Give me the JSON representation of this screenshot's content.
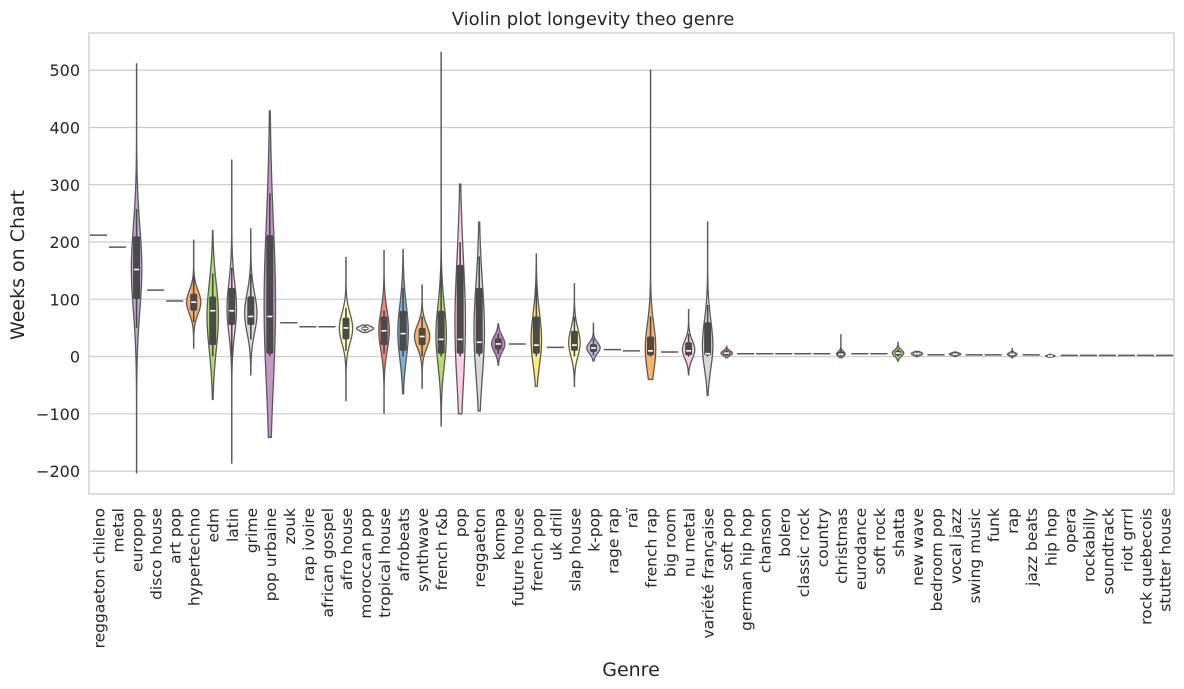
{
  "chart_data": {
    "type": "violin",
    "title": "Violin plot longevity theo genre",
    "xlabel": "Genre",
    "ylabel": "Weeks on Chart",
    "ylim": [
      -240,
      565
    ],
    "yticks": [
      -200,
      -100,
      0,
      100,
      200,
      300,
      400,
      500
    ],
    "grid": "horizontal",
    "categories": [
      "reggaeton chileno",
      "metal",
      "europop",
      "disco house",
      "art pop",
      "hypertechno",
      "edm",
      "latin",
      "grime",
      "pop urbaine",
      "zouk",
      "rap ivoire",
      "african gospel",
      "afro house",
      "moroccan pop",
      "tropical house",
      "afrobeats",
      "synthwave",
      "french r&b",
      "pop",
      "reggaeton",
      "kompa",
      "future house",
      "french pop",
      "uk drill",
      "slap house",
      "k-pop",
      "rage rap",
      "raï",
      "french rap",
      "big room",
      "nu metal",
      "variété française",
      "soft pop",
      "german hip hop",
      "chanson",
      "bolero",
      "classic rock",
      "country",
      "christmas",
      "eurodance",
      "soft rock",
      "shatta",
      "new wave",
      "bedroom pop",
      "vocal jazz",
      "swing music",
      "funk",
      "rap",
      "jazz beats",
      "hip hop",
      "opera",
      "rockabilly",
      "soundtrack",
      "riot grrrl",
      "rock quebecois",
      "stutter house"
    ],
    "series": [
      {
        "genre": "reggaeton chileno",
        "color": "#7fc97f",
        "min": 212,
        "max": 212,
        "q1": 212,
        "median": 212,
        "q3": 212,
        "wmin": 212,
        "wmax": 212,
        "width": 0.0
      },
      {
        "genre": "metal",
        "color": "#beaed4",
        "min": 191,
        "max": 191,
        "q1": 191,
        "median": 191,
        "q3": 191,
        "wmin": 191,
        "wmax": 191,
        "width": 0.0
      },
      {
        "genre": "europop",
        "color": "#beaed4",
        "min": -203,
        "max": 511,
        "q1": 100,
        "median": 152,
        "q3": 210,
        "wmin": 50,
        "wmax": 258,
        "width": 0.55
      },
      {
        "genre": "disco house",
        "color": "#fdc086",
        "min": 116,
        "max": 116,
        "q1": 116,
        "median": 116,
        "q3": 116,
        "wmin": 116,
        "wmax": 116,
        "width": 0.0
      },
      {
        "genre": "art pop",
        "color": "#ffff99",
        "min": 97,
        "max": 97,
        "q1": 97,
        "median": 97,
        "q3": 97,
        "wmin": 97,
        "wmax": 97,
        "width": 0.0
      },
      {
        "genre": "hypertechno",
        "color": "#fdae61",
        "min": 15,
        "max": 203,
        "q1": 80,
        "median": 95,
        "q3": 110,
        "wmin": 60,
        "wmax": 140,
        "width": 0.75
      },
      {
        "genre": "edm",
        "color": "#b3de69",
        "min": -75,
        "max": 220,
        "q1": 20,
        "median": 80,
        "q3": 105,
        "wmin": 0,
        "wmax": 145,
        "width": 0.6
      },
      {
        "genre": "latin",
        "color": "#fccde5",
        "min": -186,
        "max": 343,
        "q1": 55,
        "median": 80,
        "q3": 120,
        "wmin": 0,
        "wmax": 155,
        "width": 0.5
      },
      {
        "genre": "grime",
        "color": "#d9d9d9",
        "min": -32,
        "max": 223,
        "q1": 55,
        "median": 70,
        "q3": 105,
        "wmin": 30,
        "wmax": 145,
        "width": 0.65
      },
      {
        "genre": "pop urbaine",
        "color": "#c994c7",
        "min": -141,
        "max": 429,
        "q1": 5,
        "median": 70,
        "q3": 212,
        "wmin": 0,
        "wmax": 285,
        "width": 0.6
      },
      {
        "genre": "zouk",
        "color": "#66c2a5",
        "min": 59,
        "max": 59,
        "q1": 59,
        "median": 59,
        "q3": 59,
        "wmin": 59,
        "wmax": 59,
        "width": 0.0
      },
      {
        "genre": "rap ivoire",
        "color": "#8da0cb",
        "min": 52,
        "max": 52,
        "q1": 52,
        "median": 52,
        "q3": 52,
        "wmin": 52,
        "wmax": 52,
        "width": 0.0
      },
      {
        "genre": "african gospel",
        "color": "#e78ac3",
        "min": 52,
        "max": 52,
        "q1": 52,
        "median": 52,
        "q3": 52,
        "wmin": 52,
        "wmax": 52,
        "width": 0.0
      },
      {
        "genre": "afro house",
        "color": "#ffffb3",
        "min": -77,
        "max": 173,
        "q1": 30,
        "median": 50,
        "q3": 68,
        "wmin": 10,
        "wmax": 85,
        "width": 0.7
      },
      {
        "genre": "moroccan pop",
        "color": "#e5e5e5",
        "min": 42,
        "max": 55,
        "q1": 46,
        "median": 49,
        "q3": 52,
        "wmin": 44,
        "wmax": 54,
        "width": 0.9
      },
      {
        "genre": "tropical house",
        "color": "#fb8072",
        "min": -99,
        "max": 185,
        "q1": 20,
        "median": 45,
        "q3": 70,
        "wmin": 5,
        "wmax": 80,
        "width": 0.55
      },
      {
        "genre": "afrobeats",
        "color": "#80b1d3",
        "min": -65,
        "max": 187,
        "q1": 10,
        "median": 40,
        "q3": 80,
        "wmin": 0,
        "wmax": 120,
        "width": 0.55
      },
      {
        "genre": "synthwave",
        "color": "#fdb462",
        "min": -55,
        "max": 125,
        "q1": 20,
        "median": 35,
        "q3": 50,
        "wmin": 0,
        "wmax": 70,
        "width": 0.8
      },
      {
        "genre": "french r&b",
        "color": "#b3de69",
        "min": -121,
        "max": 531,
        "q1": 5,
        "median": 30,
        "q3": 80,
        "wmin": 0,
        "wmax": 150,
        "width": 0.55
      },
      {
        "genre": "pop",
        "color": "#fccde5",
        "min": -100,
        "max": 301,
        "q1": 5,
        "median": 30,
        "q3": 160,
        "wmin": 0,
        "wmax": 200,
        "width": 0.55
      },
      {
        "genre": "reggaeton",
        "color": "#d9d9d9",
        "min": -95,
        "max": 235,
        "q1": 5,
        "median": 25,
        "q3": 120,
        "wmin": 0,
        "wmax": 175,
        "width": 0.55
      },
      {
        "genre": "kompa",
        "color": "#bc80bd",
        "min": -15,
        "max": 57,
        "q1": 12,
        "median": 22,
        "q3": 32,
        "wmin": 5,
        "wmax": 40,
        "width": 0.7
      },
      {
        "genre": "future house",
        "color": "#ccebc5",
        "min": 22,
        "max": 22,
        "q1": 22,
        "median": 22,
        "q3": 22,
        "wmin": 22,
        "wmax": 22,
        "width": 0.0
      },
      {
        "genre": "french pop",
        "color": "#ffed6f",
        "min": -52,
        "max": 179,
        "q1": 5,
        "median": 20,
        "q3": 70,
        "wmin": 0,
        "wmax": 125,
        "width": 0.55
      },
      {
        "genre": "uk drill",
        "color": "#8dd3c7",
        "min": 16,
        "max": 16,
        "q1": 16,
        "median": 16,
        "q3": 16,
        "wmin": 16,
        "wmax": 16,
        "width": 0.0
      },
      {
        "genre": "slap house",
        "color": "#ffffb3",
        "min": -52,
        "max": 127,
        "q1": 10,
        "median": 20,
        "q3": 45,
        "wmin": 0,
        "wmax": 70,
        "width": 0.6
      },
      {
        "genre": "k-pop",
        "color": "#bebada",
        "min": -8,
        "max": 58,
        "q1": 8,
        "median": 15,
        "q3": 22,
        "wmin": 2,
        "wmax": 32,
        "width": 0.7
      },
      {
        "genre": "rage rap",
        "color": "#fb8072",
        "min": 12,
        "max": 12,
        "q1": 12,
        "median": 12,
        "q3": 12,
        "wmin": 12,
        "wmax": 12,
        "width": 0.0
      },
      {
        "genre": "raï",
        "color": "#80b1d3",
        "min": 10,
        "max": 10,
        "q1": 10,
        "median": 10,
        "q3": 10,
        "wmin": 10,
        "wmax": 10,
        "width": 0.0
      },
      {
        "genre": "french rap",
        "color": "#fdb462",
        "min": -40,
        "max": 500,
        "q1": 2,
        "median": 10,
        "q3": 35,
        "wmin": 0,
        "wmax": 70,
        "width": 0.55
      },
      {
        "genre": "big room",
        "color": "#b3de69",
        "min": 8,
        "max": 8,
        "q1": 8,
        "median": 8,
        "q3": 8,
        "wmin": 8,
        "wmax": 8,
        "width": 0.0
      },
      {
        "genre": "nu metal",
        "color": "#fccde5",
        "min": -32,
        "max": 82,
        "q1": 2,
        "median": 10,
        "q3": 25,
        "wmin": 0,
        "wmax": 40,
        "width": 0.65
      },
      {
        "genre": "variété française",
        "color": "#d9d9d9",
        "min": -68,
        "max": 235,
        "q1": 2,
        "median": 5,
        "q3": 60,
        "wmin": 0,
        "wmax": 90,
        "width": 0.55
      },
      {
        "genre": "soft pop",
        "color": "#bc80bd",
        "min": -2,
        "max": 18,
        "q1": 3,
        "median": 6,
        "q3": 9,
        "wmin": 1,
        "wmax": 12,
        "width": 0.6
      },
      {
        "genre": "german hip hop",
        "color": "#ccebc5",
        "min": 5,
        "max": 5,
        "q1": 5,
        "median": 5,
        "q3": 5,
        "wmin": 5,
        "wmax": 5,
        "width": 0.0
      },
      {
        "genre": "chanson",
        "color": "#ffed6f",
        "min": 5,
        "max": 5,
        "q1": 5,
        "median": 5,
        "q3": 5,
        "wmin": 5,
        "wmax": 5,
        "width": 0.0
      },
      {
        "genre": "bolero",
        "color": "#8dd3c7",
        "min": 5,
        "max": 5,
        "q1": 5,
        "median": 5,
        "q3": 5,
        "wmin": 5,
        "wmax": 5,
        "width": 0.0
      },
      {
        "genre": "classic rock",
        "color": "#ffffb3",
        "min": 5,
        "max": 5,
        "q1": 5,
        "median": 5,
        "q3": 5,
        "wmin": 5,
        "wmax": 5,
        "width": 0.0
      },
      {
        "genre": "country",
        "color": "#bebada",
        "min": 5,
        "max": 5,
        "q1": 5,
        "median": 5,
        "q3": 5,
        "wmin": 5,
        "wmax": 5,
        "width": 0.0
      },
      {
        "genre": "christmas",
        "color": "#fb8072",
        "min": -2,
        "max": 38,
        "q1": 2,
        "median": 4,
        "q3": 8,
        "wmin": 0,
        "wmax": 12,
        "width": 0.45
      },
      {
        "genre": "eurodance",
        "color": "#80b1d3",
        "min": 5,
        "max": 5,
        "q1": 5,
        "median": 5,
        "q3": 5,
        "wmin": 5,
        "wmax": 5,
        "width": 0.0
      },
      {
        "genre": "soft rock",
        "color": "#fdb462",
        "min": 5,
        "max": 5,
        "q1": 5,
        "median": 5,
        "q3": 5,
        "wmin": 5,
        "wmax": 5,
        "width": 0.0
      },
      {
        "genre": "shatta",
        "color": "#b3de69",
        "min": -8,
        "max": 25,
        "q1": 2,
        "median": 6,
        "q3": 10,
        "wmin": 0,
        "wmax": 14,
        "width": 0.6
      },
      {
        "genre": "new wave",
        "color": "#fccde5",
        "min": 0,
        "max": 9,
        "q1": 3,
        "median": 5,
        "q3": 7,
        "wmin": 1,
        "wmax": 8,
        "width": 0.6
      },
      {
        "genre": "bedroom pop",
        "color": "#d9d9d9",
        "min": 3,
        "max": 3,
        "q1": 3,
        "median": 3,
        "q3": 3,
        "wmin": 3,
        "wmax": 3,
        "width": 0.0
      },
      {
        "genre": "vocal jazz",
        "color": "#bc80bd",
        "min": 0,
        "max": 8,
        "q1": 3,
        "median": 4,
        "q3": 6,
        "wmin": 1,
        "wmax": 7,
        "width": 0.6
      },
      {
        "genre": "swing music",
        "color": "#ccebc5",
        "min": 3,
        "max": 3,
        "q1": 3,
        "median": 3,
        "q3": 3,
        "wmin": 3,
        "wmax": 3,
        "width": 0.0
      },
      {
        "genre": "funk",
        "color": "#ffed6f",
        "min": 3,
        "max": 3,
        "q1": 3,
        "median": 3,
        "q3": 3,
        "wmin": 3,
        "wmax": 3,
        "width": 0.0
      },
      {
        "genre": "rap",
        "color": "#8dd3c7",
        "min": -2,
        "max": 14,
        "q1": 2,
        "median": 4,
        "q3": 6,
        "wmin": 0,
        "wmax": 9,
        "width": 0.5
      },
      {
        "genre": "jazz beats",
        "color": "#ffffb3",
        "min": 3,
        "max": 3,
        "q1": 3,
        "median": 3,
        "q3": 3,
        "wmin": 3,
        "wmax": 3,
        "width": 0.0
      },
      {
        "genre": "hip hop",
        "color": "#bebada",
        "min": -1,
        "max": 4,
        "q1": 0,
        "median": 1,
        "q3": 2,
        "wmin": 0,
        "wmax": 3,
        "width": 0.5
      },
      {
        "genre": "opera",
        "color": "#fb8072",
        "min": 2,
        "max": 2,
        "q1": 2,
        "median": 2,
        "q3": 2,
        "wmin": 2,
        "wmax": 2,
        "width": 0.0
      },
      {
        "genre": "rockabilly",
        "color": "#80b1d3",
        "min": 2,
        "max": 2,
        "q1": 2,
        "median": 2,
        "q3": 2,
        "wmin": 2,
        "wmax": 2,
        "width": 0.0
      },
      {
        "genre": "soundtrack",
        "color": "#fdb462",
        "min": 2,
        "max": 2,
        "q1": 2,
        "median": 2,
        "q3": 2,
        "wmin": 2,
        "wmax": 2,
        "width": 0.0
      },
      {
        "genre": "riot grrrl",
        "color": "#b3de69",
        "min": 2,
        "max": 2,
        "q1": 2,
        "median": 2,
        "q3": 2,
        "wmin": 2,
        "wmax": 2,
        "width": 0.0
      },
      {
        "genre": "rock quebecois",
        "color": "#fccde5",
        "min": 2,
        "max": 2,
        "q1": 2,
        "median": 2,
        "q3": 2,
        "wmin": 2,
        "wmax": 2,
        "width": 0.0
      },
      {
        "genre": "stutter house",
        "color": "#d9d9d9",
        "min": 2,
        "max": 2,
        "q1": 2,
        "median": 2,
        "q3": 2,
        "wmin": 2,
        "wmax": 2,
        "width": 0.0
      }
    ]
  }
}
